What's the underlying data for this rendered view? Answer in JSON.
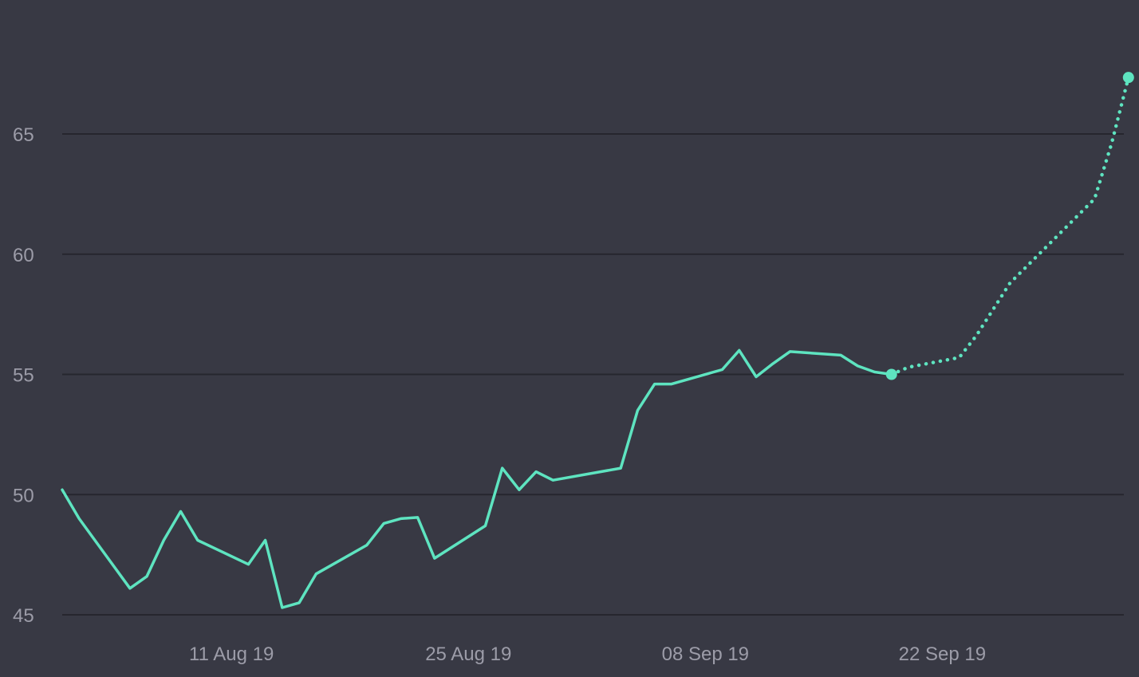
{
  "chart_data": {
    "type": "line",
    "background": "#383944",
    "grid": true,
    "grid_color": "#26262e",
    "tick_color": "#9c9ca8",
    "line_color": "#5ee4c0",
    "ylim": [
      45,
      67
    ],
    "xlim": [
      "2019-08-01",
      "2019-10-04"
    ],
    "y_ticks": [
      45,
      50,
      55,
      60,
      65
    ],
    "x_ticks": [
      {
        "date": "2019-08-11",
        "label": "11 Aug 19"
      },
      {
        "date": "2019-08-25",
        "label": "25 Aug 19"
      },
      {
        "date": "2019-09-08",
        "label": "08 Sep 19"
      },
      {
        "date": "2019-09-22",
        "label": "22 Sep 19"
      }
    ],
    "series": [
      {
        "style": "solid",
        "points": [
          [
            "2019-08-01",
            50.2
          ],
          [
            "2019-08-02",
            49.0
          ],
          [
            "2019-08-05",
            46.1
          ],
          [
            "2019-08-06",
            46.6
          ],
          [
            "2019-08-07",
            48.1
          ],
          [
            "2019-08-08",
            49.3
          ],
          [
            "2019-08-09",
            48.1
          ],
          [
            "2019-08-12",
            47.1
          ],
          [
            "2019-08-13",
            48.1
          ],
          [
            "2019-08-14",
            45.3
          ],
          [
            "2019-08-15",
            45.5
          ],
          [
            "2019-08-16",
            46.7
          ],
          [
            "2019-08-19",
            47.9
          ],
          [
            "2019-08-20",
            48.8
          ],
          [
            "2019-08-21",
            49.0
          ],
          [
            "2019-08-22",
            49.05
          ],
          [
            "2019-08-23",
            47.35
          ],
          [
            "2019-08-26",
            48.7
          ],
          [
            "2019-08-27",
            51.1
          ],
          [
            "2019-08-28",
            50.2
          ],
          [
            "2019-08-29",
            50.95
          ],
          [
            "2019-08-30",
            50.6
          ],
          [
            "2019-09-03",
            51.1
          ],
          [
            "2019-09-04",
            53.5
          ],
          [
            "2019-09-05",
            54.6
          ],
          [
            "2019-09-06",
            54.6
          ],
          [
            "2019-09-09",
            55.2
          ],
          [
            "2019-09-10",
            56.0
          ],
          [
            "2019-09-11",
            54.9
          ],
          [
            "2019-09-12",
            55.45
          ],
          [
            "2019-09-13",
            55.95
          ],
          [
            "2019-09-16",
            55.8
          ],
          [
            "2019-09-17",
            55.35
          ],
          [
            "2019-09-18",
            55.1
          ],
          [
            "2019-09-19",
            55.0
          ]
        ]
      },
      {
        "style": "dotted",
        "points": [
          [
            "2019-09-19",
            55.0
          ],
          [
            "2019-09-20",
            55.3
          ],
          [
            "2019-09-23",
            55.7
          ],
          [
            "2019-09-24",
            56.6
          ],
          [
            "2019-09-26",
            58.8
          ],
          [
            "2019-10-01",
            62.3
          ],
          [
            "2019-10-02",
            64.6
          ],
          [
            "2019-10-03",
            67.35
          ]
        ]
      }
    ],
    "markers": [
      {
        "date": "2019-09-19",
        "value": 55.0
      },
      {
        "date": "2019-10-03",
        "value": 67.35
      }
    ]
  }
}
